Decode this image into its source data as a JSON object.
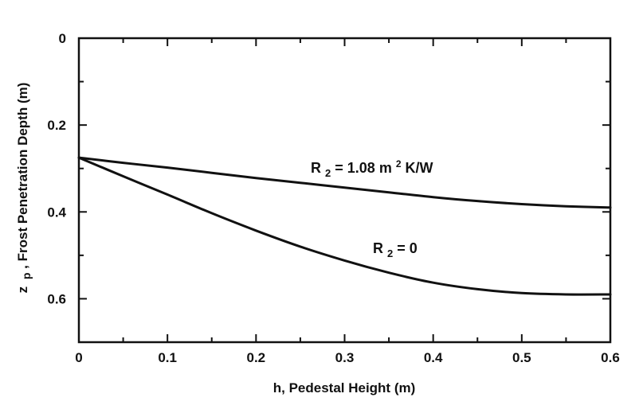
{
  "chart_data": {
    "type": "line",
    "title": "",
    "xlabel": "h, Pedestal Height (m)",
    "ylabel": "z p , Frost Penetration Depth (m)",
    "ylabel_parts": {
      "var": "z",
      "sub": "p",
      "rest": ", Frost Penetration Depth (m)"
    },
    "xlim": [
      0,
      0.6
    ],
    "ylim": [
      0,
      0.7
    ],
    "y_inverted": true,
    "xticks": [
      0,
      0.1,
      0.2,
      0.3,
      0.4,
      0.5,
      0.6
    ],
    "xtick_labels": [
      "0",
      "0.1",
      "0.2",
      "0.3",
      "0.4",
      "0.5",
      "0.6"
    ],
    "yticks": [
      0,
      0.2,
      0.4,
      0.6
    ],
    "ytick_labels": [
      "0",
      "0.2",
      "0.4",
      "0.6"
    ],
    "grid": false,
    "series": [
      {
        "name": "R2 = 1.08 m2 K/W",
        "label_parts": {
          "var": "R",
          "sub": "2",
          "mid": " = 1.08 m",
          "sup": "2",
          "end": " K/W"
        },
        "x": [
          0,
          0.05,
          0.1,
          0.15,
          0.2,
          0.25,
          0.3,
          0.35,
          0.4,
          0.45,
          0.5,
          0.55,
          0.6
        ],
        "y": [
          0.275,
          0.287,
          0.298,
          0.31,
          0.322,
          0.333,
          0.344,
          0.355,
          0.366,
          0.375,
          0.382,
          0.387,
          0.39
        ]
      },
      {
        "name": "R2 = 0",
        "label_parts": {
          "var": "R",
          "sub": "2",
          "mid": " = 0",
          "sup": "",
          "end": ""
        },
        "x": [
          0,
          0.05,
          0.1,
          0.15,
          0.2,
          0.25,
          0.3,
          0.35,
          0.4,
          0.45,
          0.5,
          0.55,
          0.6
        ],
        "y": [
          0.275,
          0.318,
          0.36,
          0.403,
          0.443,
          0.48,
          0.512,
          0.54,
          0.563,
          0.578,
          0.587,
          0.59,
          0.59
        ]
      }
    ]
  }
}
